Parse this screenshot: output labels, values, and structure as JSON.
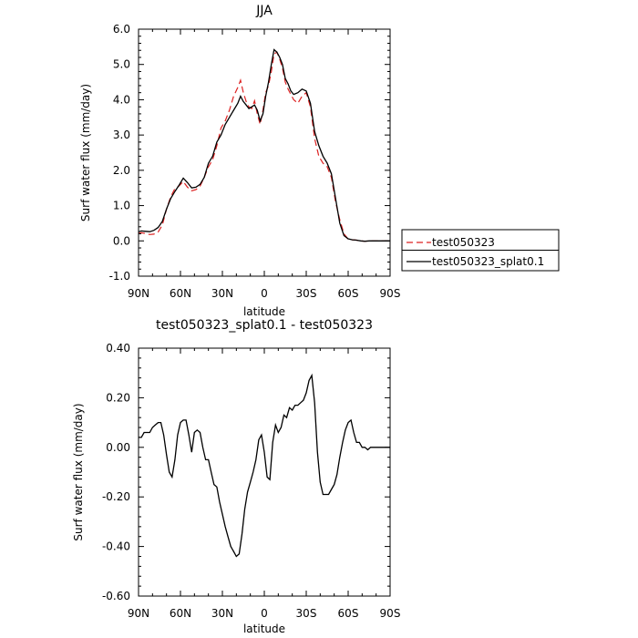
{
  "chart_data": [
    {
      "type": "line",
      "title": "JJA",
      "xlabel": "latitude",
      "ylabel": "Surf water flux (mm/day)",
      "xlim": [
        90,
        -90
      ],
      "ylim": [
        -1.0,
        6.0
      ],
      "xticks": [
        90,
        60,
        30,
        0,
        -30,
        -60,
        -90
      ],
      "xtick_labels": [
        "90N",
        "60N",
        "30N",
        "0",
        "30S",
        "60S",
        "90S"
      ],
      "yticks": [
        -1.0,
        0.0,
        1.0,
        2.0,
        3.0,
        4.0,
        5.0,
        6.0
      ],
      "ytick_labels": [
        "-1.0",
        "0.0",
        "1.0",
        "2.0",
        "3.0",
        "4.0",
        "5.0",
        "6.0"
      ],
      "grid": false,
      "legend_position": "outside-right",
      "series": [
        {
          "name": "test050323",
          "color": "#dd2222",
          "dash": "dashed",
          "x": [
            90,
            88,
            85,
            82,
            79,
            76,
            73,
            70,
            67,
            64,
            61,
            58,
            55,
            52,
            49,
            46,
            43,
            40,
            37,
            34,
            31,
            28,
            25,
            22,
            19,
            17,
            15,
            13,
            11,
            9,
            7,
            5,
            3,
            1,
            -1,
            -3,
            -5,
            -7,
            -9,
            -11,
            -13,
            -15,
            -17,
            -19,
            -21,
            -24,
            -27,
            -30,
            -33,
            -36,
            -39,
            -42,
            -45,
            -48,
            -51,
            -54,
            -57,
            -60,
            -63,
            -66,
            -69,
            -72,
            -75,
            -78,
            -81,
            -84,
            -87,
            -90
          ],
          "y": [
            0.22,
            0.23,
            0.21,
            0.18,
            0.19,
            0.25,
            0.45,
            0.9,
            1.25,
            1.48,
            1.56,
            1.68,
            1.52,
            1.42,
            1.45,
            1.55,
            1.8,
            2.1,
            2.3,
            2.7,
            3.2,
            3.4,
            3.7,
            4.1,
            4.35,
            4.55,
            4.2,
            3.95,
            3.8,
            3.75,
            3.97,
            3.6,
            3.3,
            3.7,
            4.2,
            4.4,
            4.8,
            5.3,
            5.35,
            5.15,
            4.9,
            4.5,
            4.3,
            4.15,
            4.0,
            3.9,
            4.1,
            4.2,
            3.8,
            2.9,
            2.4,
            2.2,
            2.1,
            1.8,
            1.1,
            0.6,
            0.2,
            0.05,
            0.03,
            0.02,
            0.0,
            -0.01,
            0.0,
            0.0,
            0.0,
            0.0,
            0.0,
            0.0
          ]
        },
        {
          "name": "test050323_splat0.1",
          "color": "#000000",
          "dash": "solid",
          "x": [
            90,
            88,
            85,
            82,
            79,
            76,
            73,
            70,
            67,
            64,
            61,
            58,
            55,
            52,
            49,
            46,
            43,
            40,
            37,
            34,
            31,
            28,
            25,
            22,
            19,
            17,
            15,
            13,
            11,
            9,
            7,
            5,
            3,
            1,
            -1,
            -3,
            -5,
            -7,
            -9,
            -11,
            -13,
            -15,
            -17,
            -19,
            -21,
            -24,
            -27,
            -30,
            -33,
            -36,
            -39,
            -42,
            -45,
            -48,
            -51,
            -54,
            -57,
            -60,
            -63,
            -66,
            -69,
            -72,
            -75,
            -78,
            -81,
            -84,
            -87,
            -90
          ],
          "y": [
            0.26,
            0.28,
            0.27,
            0.26,
            0.3,
            0.38,
            0.55,
            0.9,
            1.2,
            1.4,
            1.58,
            1.78,
            1.65,
            1.5,
            1.52,
            1.6,
            1.8,
            2.2,
            2.4,
            2.8,
            3.0,
            3.3,
            3.5,
            3.7,
            3.9,
            4.1,
            3.95,
            3.85,
            3.75,
            3.8,
            3.85,
            3.7,
            3.4,
            3.6,
            4.1,
            4.5,
            5.0,
            5.42,
            5.35,
            5.2,
            5.0,
            4.6,
            4.45,
            4.25,
            4.15,
            4.2,
            4.3,
            4.25,
            3.9,
            3.1,
            2.7,
            2.4,
            2.2,
            1.9,
            1.2,
            0.5,
            0.15,
            0.06,
            0.03,
            0.02,
            0.0,
            -0.01,
            0.0,
            0.0,
            0.0,
            0.0,
            0.0,
            0.0
          ]
        }
      ]
    },
    {
      "type": "line",
      "title": "test050323_splat0.1 - test050323",
      "xlabel": "latitude",
      "ylabel": "Surf water flux (mm/day)",
      "xlim": [
        90,
        -90
      ],
      "ylim": [
        -0.6,
        0.4
      ],
      "xticks": [
        90,
        60,
        30,
        0,
        -30,
        -60,
        -90
      ],
      "xtick_labels": [
        "90N",
        "60N",
        "30N",
        "0",
        "30S",
        "60S",
        "90S"
      ],
      "yticks": [
        -0.6,
        -0.4,
        -0.2,
        0.0,
        0.2,
        0.4
      ],
      "ytick_labels": [
        "-0.60",
        "-0.40",
        "-0.20",
        "0.00",
        "0.20",
        "0.40"
      ],
      "grid": false,
      "series": [
        {
          "color": "#000000",
          "dash": "solid",
          "x": [
            90,
            88,
            86,
            84,
            82,
            80,
            78,
            76,
            74,
            72,
            70,
            68,
            66,
            64,
            62,
            60,
            58,
            56,
            54,
            52,
            50,
            48,
            46,
            44,
            42,
            40,
            38,
            36,
            34,
            32,
            30,
            28,
            26,
            24,
            22,
            20,
            18,
            16,
            14,
            12,
            10,
            8,
            6,
            4,
            2,
            0,
            -2,
            -4,
            -6,
            -8,
            -10,
            -12,
            -14,
            -16,
            -18,
            -20,
            -22,
            -24,
            -26,
            -28,
            -30,
            -32,
            -34,
            -36,
            -38,
            -40,
            -42,
            -44,
            -46,
            -48,
            -50,
            -52,
            -54,
            -56,
            -58,
            -60,
            -62,
            -64,
            -66,
            -68,
            -70,
            -72,
            -74,
            -76,
            -78,
            -80,
            -82,
            -84,
            -86,
            -88,
            -90
          ],
          "y": [
            0.04,
            0.04,
            0.06,
            0.06,
            0.06,
            0.08,
            0.09,
            0.1,
            0.1,
            0.05,
            -0.03,
            -0.1,
            -0.12,
            -0.05,
            0.05,
            0.1,
            0.11,
            0.11,
            0.05,
            -0.02,
            0.06,
            0.07,
            0.06,
            0.0,
            -0.05,
            -0.05,
            -0.1,
            -0.15,
            -0.16,
            -0.22,
            -0.27,
            -0.32,
            -0.36,
            -0.4,
            -0.42,
            -0.44,
            -0.43,
            -0.35,
            -0.25,
            -0.18,
            -0.14,
            -0.1,
            -0.05,
            0.03,
            0.05,
            -0.02,
            -0.12,
            -0.13,
            0.02,
            0.09,
            0.06,
            0.08,
            0.13,
            0.12,
            0.16,
            0.15,
            0.17,
            0.17,
            0.18,
            0.19,
            0.22,
            0.27,
            0.29,
            0.18,
            -0.02,
            -0.14,
            -0.19,
            -0.19,
            -0.19,
            -0.17,
            -0.15,
            -0.11,
            -0.04,
            0.02,
            0.07,
            0.1,
            0.11,
            0.06,
            0.02,
            0.02,
            0.0,
            0.0,
            -0.01,
            0.0,
            0.0,
            0.0,
            0.0,
            0.0,
            0.0,
            0.0,
            0.0
          ]
        }
      ]
    }
  ]
}
